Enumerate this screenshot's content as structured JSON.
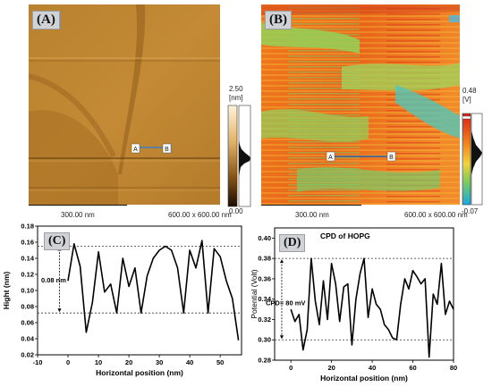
{
  "panels": {
    "A": {
      "letter": "(A)",
      "scalebar": "300.00 nm",
      "size": "600.00 x 600.00 nm",
      "colorbar_max": "2.50",
      "colorbar_unit": "[nm]",
      "colorbar_min": "0.00",
      "marker_a": "A",
      "marker_b": "B"
    },
    "B": {
      "letter": "(B)",
      "scalebar": "300.00 nm",
      "size": "600.00 x 600.00 nm",
      "colorbar_max": "0.48",
      "colorbar_unit": "[V]",
      "colorbar_min": "-0.07",
      "marker_a": "A",
      "marker_b": "B"
    },
    "C": {
      "letter": "(C)",
      "annotation": "0.08 nm"
    },
    "D": {
      "letter": "(D)",
      "annotation": "CPD= 80 mV"
    }
  },
  "chart_data": [
    {
      "type": "line",
      "title": "",
      "xlabel": "Horizontal position (nm)",
      "ylabel": "Hight (nm)",
      "xlim": [
        -10,
        57
      ],
      "ylim": [
        0.02,
        0.18
      ],
      "xticks": [
        -10,
        0,
        10,
        20,
        30,
        40,
        50
      ],
      "yticks": [
        0.02,
        0.04,
        0.06,
        0.08,
        0.1,
        0.12,
        0.14,
        0.16,
        0.18
      ],
      "reference_lines": [
        0.072,
        0.155
      ],
      "x": [
        0,
        2,
        4,
        6,
        8,
        10,
        12,
        14,
        16,
        18,
        20,
        22,
        24,
        26,
        28,
        30,
        32,
        34,
        36,
        38,
        40,
        42,
        44,
        46,
        48,
        50,
        52,
        54,
        56
      ],
      "y": [
        0.112,
        0.158,
        0.13,
        0.048,
        0.085,
        0.148,
        0.098,
        0.108,
        0.072,
        0.14,
        0.105,
        0.128,
        0.072,
        0.118,
        0.14,
        0.15,
        0.155,
        0.15,
        0.128,
        0.072,
        0.15,
        0.128,
        0.162,
        0.072,
        0.152,
        0.142,
        0.112,
        0.09,
        0.038
      ]
    },
    {
      "type": "line",
      "title": "CPD of HOPG",
      "xlabel": "Horizontal position (nm)",
      "ylabel": "Potential (Volt)",
      "xlim": [
        -8,
        80
      ],
      "ylim": [
        0.28,
        0.41
      ],
      "xticks": [
        0,
        20,
        40,
        60,
        80
      ],
      "yticks": [
        0.28,
        0.3,
        0.32,
        0.34,
        0.36,
        0.38,
        0.4
      ],
      "reference_lines": [
        0.3,
        0.38
      ],
      "x": [
        0,
        2,
        4,
        6,
        8,
        10,
        12,
        14,
        16,
        18,
        20,
        22,
        24,
        26,
        28,
        30,
        32,
        34,
        36,
        38,
        40,
        42,
        44,
        46,
        48,
        50,
        52,
        54,
        56,
        58,
        60,
        62,
        64,
        66,
        68,
        70,
        72,
        74,
        76,
        78,
        80
      ],
      "y": [
        0.33,
        0.318,
        0.325,
        0.29,
        0.31,
        0.38,
        0.338,
        0.315,
        0.358,
        0.32,
        0.375,
        0.355,
        0.318,
        0.352,
        0.355,
        0.295,
        0.34,
        0.365,
        0.38,
        0.322,
        0.35,
        0.335,
        0.33,
        0.315,
        0.31,
        0.302,
        0.3,
        0.335,
        0.36,
        0.35,
        0.368,
        0.362,
        0.355,
        0.36,
        0.283,
        0.345,
        0.335,
        0.375,
        0.325,
        0.338,
        0.33
      ]
    }
  ]
}
